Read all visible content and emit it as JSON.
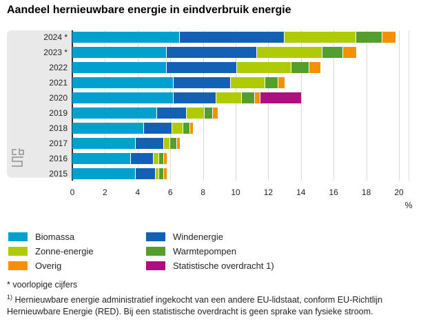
{
  "title": "Aandeel hernieuwbare energie in eindverbruik energie",
  "chart_data": {
    "type": "bar",
    "orientation": "horizontal",
    "stacked": true,
    "title": "Aandeel hernieuwbare energie in eindverbruik energie",
    "categories": [
      "2024 *",
      "2023 *",
      "2022",
      "2021",
      "2020",
      "2019",
      "2018",
      "2017",
      "2016",
      "2015"
    ],
    "series": [
      {
        "name": "Biomassa",
        "color": "#00a1cd",
        "values": [
          6.6,
          5.8,
          5.8,
          6.2,
          6.2,
          5.2,
          4.4,
          3.9,
          3.6,
          3.9
        ]
      },
      {
        "name": "Windenergie",
        "color": "#1261b5",
        "values": [
          6.4,
          5.5,
          4.3,
          3.5,
          2.6,
          1.8,
          1.7,
          1.7,
          1.4,
          1.2
        ]
      },
      {
        "name": "Zonne-energie",
        "color": "#afcb05",
        "values": [
          4.4,
          4.0,
          3.3,
          2.1,
          1.6,
          1.1,
          0.7,
          0.4,
          0.3,
          0.2
        ]
      },
      {
        "name": "Warmtepompen",
        "color": "#539e2c",
        "values": [
          1.6,
          1.3,
          1.1,
          0.8,
          0.8,
          0.5,
          0.4,
          0.4,
          0.3,
          0.3
        ]
      },
      {
        "name": "Overig",
        "color": "#f39200",
        "values": [
          0.8,
          0.8,
          0.7,
          0.4,
          0.3,
          0.3,
          0.2,
          0.2,
          0.2,
          0.2
        ]
      },
      {
        "name": "Statistische overdracht 1)",
        "color": "#af0e80",
        "values": [
          0,
          0,
          0,
          0,
          2.5,
          0,
          0,
          0,
          0,
          0
        ]
      }
    ],
    "totals": [
      19.8,
      17.4,
      15.2,
      13.0,
      14.0,
      8.9,
      7.4,
      6.6,
      5.8,
      5.8
    ],
    "xlabel": "%",
    "xlim": [
      0,
      20
    ],
    "ticks": [
      0,
      2,
      4,
      6,
      8,
      10,
      12,
      14,
      16,
      18,
      20
    ],
    "grid": true,
    "legend_position": "bottom"
  },
  "icons": {
    "logo": "cbs-logo"
  },
  "footnotes": {
    "note1": "* voorlopige cijfers",
    "note2_sup": "1)",
    "note2_line1": "Hernieuwbare energie administratief ingekocht van een andere EU-lidstaat, conform EU-Richtlijn",
    "note2_line2": "Hernieuwbare Energie (RED). Bij een statistische overdracht is geen sprake van fysieke stroom."
  }
}
